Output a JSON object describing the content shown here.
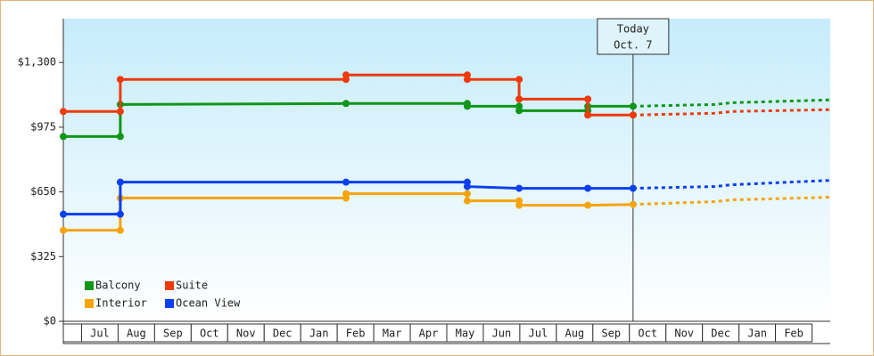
{
  "chart_data": {
    "type": "line",
    "ylim": [
      0,
      1520
    ],
    "yticks": [
      {
        "value": 0,
        "label": "$0"
      },
      {
        "value": 325,
        "label": "$325"
      },
      {
        "value": 650,
        "label": "$650"
      },
      {
        "value": 975,
        "label": "$975"
      },
      {
        "value": 1300,
        "label": "$1,300"
      }
    ],
    "xlim": [
      0,
      21
    ],
    "categories": [
      null,
      "Jul",
      "Aug",
      "Sep",
      "Oct",
      "Nov",
      "Dec",
      "Jan",
      "Feb",
      "Mar",
      "Apr",
      "May",
      "Jun",
      "Jul",
      "Aug",
      "Sep",
      "Oct",
      "Nov",
      "Dec",
      "Jan",
      "Feb"
    ],
    "today": {
      "x": 15.6,
      "label": "Today",
      "date": "Oct. 7"
    },
    "series": [
      {
        "name": "Balcony",
        "color": "#109618",
        "x": [
          0,
          1.56,
          1.56,
          7.74,
          11.06,
          11.06,
          12.48,
          12.48,
          14.36,
          14.36,
          15.6
        ],
        "values": [
          928,
          928,
          1089,
          1094,
          1094,
          1080,
          1080,
          1058,
          1058,
          1080,
          1080
        ],
        "projection_x": [
          15.6,
          17.83,
          18.32,
          21
        ],
        "projection_values": [
          1080,
          1089,
          1098,
          1112
        ]
      },
      {
        "name": "Suite",
        "color": "#ee3a0c",
        "x": [
          0,
          1.56,
          1.56,
          7.74,
          7.74,
          11.06,
          11.06,
          12.48,
          12.48,
          14.36,
          14.36,
          15.6
        ],
        "values": [
          1054,
          1054,
          1215,
          1215,
          1237,
          1237,
          1215,
          1215,
          1116,
          1116,
          1036,
          1036
        ],
        "projection_x": [
          15.6,
          17.83,
          18.32,
          21
        ],
        "projection_values": [
          1036,
          1045,
          1054,
          1063
        ]
      },
      {
        "name": "Interior",
        "color": "#f5a40c",
        "x": [
          0,
          1.56,
          1.56,
          7.74,
          7.74,
          11.06,
          11.06,
          12.48,
          12.48,
          14.36,
          15.6
        ],
        "values": [
          457,
          457,
          619,
          619,
          641,
          641,
          605,
          605,
          583,
          583,
          587
        ],
        "projection_x": [
          15.6,
          17.83,
          18.32,
          21
        ],
        "projection_values": [
          587,
          601,
          610,
          623
        ]
      },
      {
        "name": "Ocean View",
        "color": "#0b3ff0",
        "x": [
          0,
          1.56,
          1.56,
          7.74,
          11.06,
          11.06,
          12.48,
          14.36,
          15.6
        ],
        "values": [
          538,
          538,
          699,
          699,
          699,
          677,
          668,
          668,
          668
        ],
        "projection_x": [
          15.6,
          17.83,
          18.32,
          21
        ],
        "projection_values": [
          668,
          677,
          686,
          708
        ]
      }
    ]
  }
}
